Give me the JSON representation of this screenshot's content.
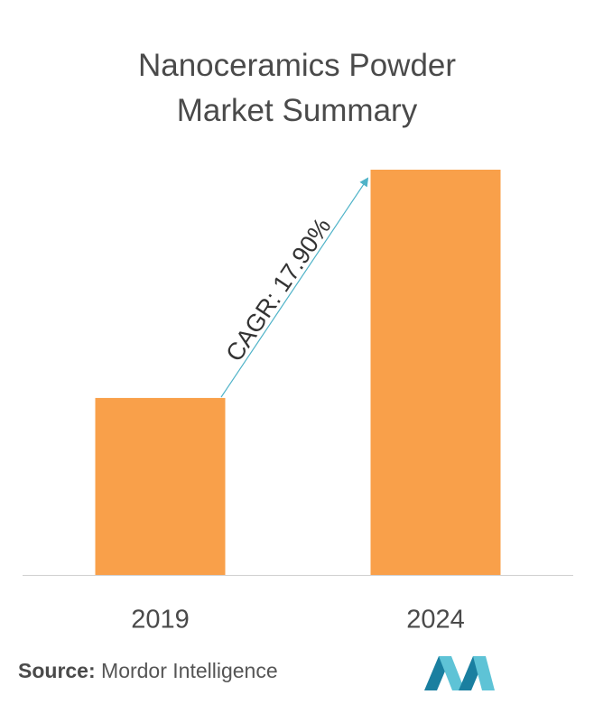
{
  "chart_data": {
    "type": "bar",
    "title": "Nanoceramics Powder Market Summary",
    "categories": [
      "2019",
      "2024"
    ],
    "values": [
      1,
      2.29
    ],
    "color": "#f9a04a",
    "ylim": [
      0,
      2.29
    ],
    "annotation": "CAGR: 17.90%",
    "source_label": "Source:",
    "source": "Mordor Intelligence"
  }
}
